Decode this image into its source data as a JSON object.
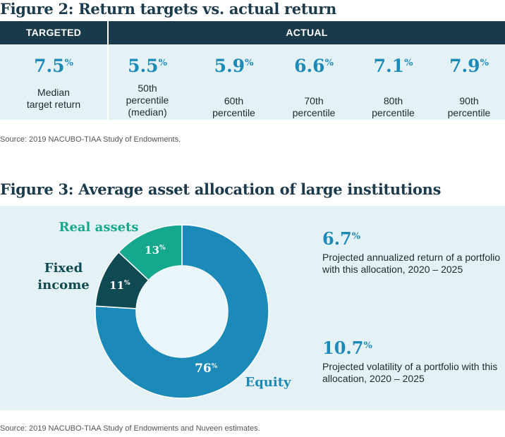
{
  "figure2": {
    "title": "Figure 2: Return targets vs. actual return",
    "header_targeted": "TARGETED",
    "header_actual": "ACTUAL",
    "cells": [
      {
        "value": "7.5",
        "unit": "%",
        "label": "Median\ntarget return"
      },
      {
        "value": "5.5",
        "unit": "%",
        "label": "50th\npercentile\n(median)"
      },
      {
        "value": "5.9",
        "unit": "%",
        "label": "60th\npercentile"
      },
      {
        "value": "6.6",
        "unit": "%",
        "label": "70th\npercentile"
      },
      {
        "value": "7.1",
        "unit": "%",
        "label": "80th\npercentile"
      },
      {
        "value": "7.9",
        "unit": "%",
        "label": "90th\npercentile"
      }
    ],
    "source": "Source: 2019 NACUBO-TIAA Study of Endowments."
  },
  "figure3": {
    "title": "Figure 3: Average asset allocation of large institutions",
    "stats": [
      {
        "value": "6.7",
        "unit": "%",
        "desc": "Projected annualized return of a portfolio with this allocation, 2020 – 2025"
      },
      {
        "value": "10.7",
        "unit": "%",
        "desc": "Projected volatility of a portfolio with this allocation, 2020 – 2025"
      }
    ],
    "source": "Source: 2019 NACUBO-TIAA Study of Endowments and Nuveen estimates."
  },
  "chart_data": {
    "type": "pie",
    "title": "Figure 3: Average asset allocation of large institutions",
    "donut": true,
    "unit": "%",
    "categories": [
      "Equity",
      "Fixed income",
      "Real assets"
    ],
    "values": [
      76,
      11,
      13
    ],
    "value_labels": [
      "76",
      "11",
      "13"
    ],
    "colors": [
      "#1c8ab8",
      "#0f4a52",
      "#16a88f"
    ],
    "label_colors": [
      "#1c8ab8",
      "#0f4a52",
      "#16a88f"
    ],
    "start": "12 o'clock",
    "direction": "clockwise"
  }
}
